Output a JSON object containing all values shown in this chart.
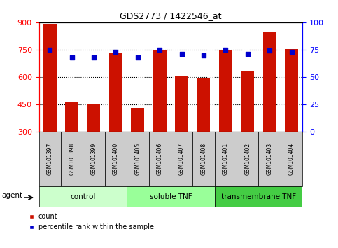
{
  "title": "GDS2773 / 1422546_at",
  "samples": [
    "GSM101397",
    "GSM101398",
    "GSM101399",
    "GSM101400",
    "GSM101405",
    "GSM101406",
    "GSM101407",
    "GSM101408",
    "GSM101401",
    "GSM101402",
    "GSM101403",
    "GSM101404"
  ],
  "counts": [
    893,
    460,
    450,
    730,
    430,
    750,
    608,
    590,
    750,
    630,
    845,
    755
  ],
  "percentiles": [
    75,
    68,
    68,
    73,
    68,
    75,
    71,
    70,
    75,
    71,
    74,
    73
  ],
  "groups": [
    {
      "label": "control",
      "start": 0,
      "end": 4,
      "color": "#ccffcc"
    },
    {
      "label": "soluble TNF",
      "start": 4,
      "end": 8,
      "color": "#99ff99"
    },
    {
      "label": "transmembrane TNF",
      "start": 8,
      "end": 12,
      "color": "#44cc44"
    }
  ],
  "ylim_left": [
    300,
    900
  ],
  "ylim_right": [
    0,
    100
  ],
  "yticks_left": [
    300,
    450,
    600,
    750,
    900
  ],
  "yticks_right": [
    0,
    25,
    50,
    75,
    100
  ],
  "bar_color": "#cc1100",
  "dot_color": "#0000cc",
  "bar_width": 0.6,
  "bar_bottom": 300,
  "agent_label": "agent",
  "legend_count": "count",
  "legend_percentile": "percentile rank within the sample",
  "xtick_bg": "#cccccc",
  "grid_yticks": [
    450,
    600,
    750
  ]
}
